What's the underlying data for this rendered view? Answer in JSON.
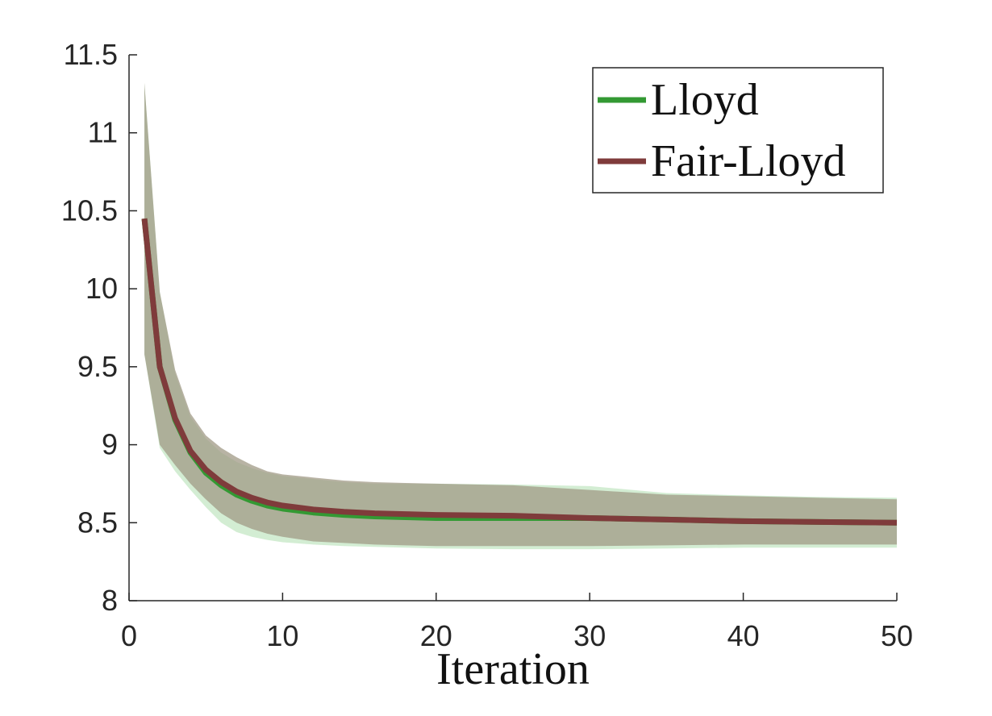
{
  "chart_data": {
    "type": "line",
    "x_label": "Iteration",
    "x": [
      1,
      2,
      3,
      4,
      5,
      6,
      7,
      8,
      9,
      10,
      12,
      14,
      16,
      18,
      20,
      25,
      30,
      35,
      40,
      45,
      50
    ],
    "xlim": [
      0,
      50
    ],
    "xticks": [
      0,
      10,
      20,
      30,
      40,
      50
    ],
    "ylim": [
      8,
      11.5
    ],
    "yticks": [
      8,
      8.5,
      9,
      9.5,
      10,
      10.5,
      11,
      11.5
    ],
    "legend": "northeast",
    "series": [
      {
        "name": "Lloyd",
        "color": "#339933",
        "band_color": "#a8dca8",
        "values": [
          10.45,
          9.5,
          9.16,
          8.95,
          8.82,
          8.74,
          8.68,
          8.64,
          8.61,
          8.59,
          8.565,
          8.55,
          8.54,
          8.535,
          8.53,
          8.53,
          8.53,
          8.52,
          8.51,
          8.505,
          8.5
        ],
        "upper": [
          11.32,
          9.98,
          9.46,
          9.18,
          9.04,
          8.95,
          8.89,
          8.85,
          8.82,
          8.8,
          8.78,
          8.76,
          8.75,
          8.75,
          8.75,
          8.745,
          8.735,
          8.69,
          8.675,
          8.665,
          8.66
        ],
        "lower": [
          9.58,
          8.98,
          8.83,
          8.71,
          8.6,
          8.5,
          8.44,
          8.41,
          8.39,
          8.375,
          8.36,
          8.35,
          8.345,
          8.34,
          8.335,
          8.33,
          8.33,
          8.335,
          8.34,
          8.34,
          8.34
        ]
      },
      {
        "name": "Fair-Lloyd",
        "color": "#7f3b3b",
        "band_color": "#a09a86",
        "values": [
          10.45,
          9.5,
          9.17,
          8.96,
          8.84,
          8.76,
          8.7,
          8.66,
          8.63,
          8.61,
          8.585,
          8.57,
          8.56,
          8.555,
          8.55,
          8.545,
          8.53,
          8.52,
          8.51,
          8.505,
          8.5
        ],
        "upper": [
          11.32,
          9.98,
          9.48,
          9.2,
          9.06,
          8.98,
          8.92,
          8.87,
          8.83,
          8.81,
          8.79,
          8.77,
          8.76,
          8.755,
          8.75,
          8.74,
          8.71,
          8.68,
          8.67,
          8.66,
          8.65
        ],
        "lower": [
          9.58,
          9.0,
          8.87,
          8.75,
          8.65,
          8.56,
          8.5,
          8.46,
          8.43,
          8.41,
          8.38,
          8.37,
          8.36,
          8.355,
          8.35,
          8.35,
          8.35,
          8.355,
          8.36,
          8.36,
          8.36
        ]
      }
    ]
  }
}
